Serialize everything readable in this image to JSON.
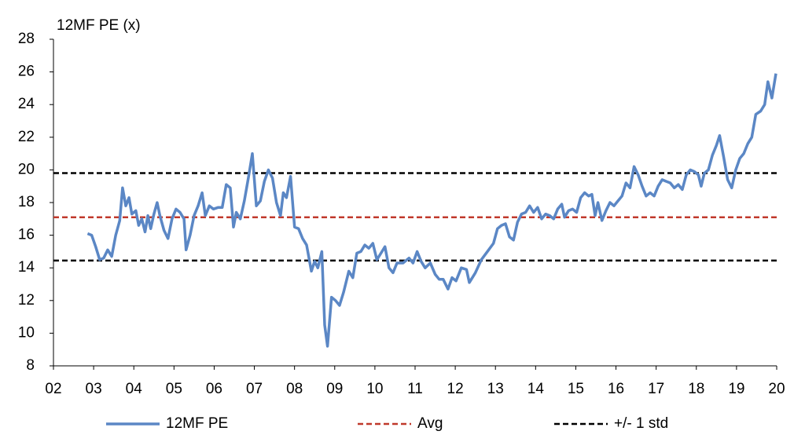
{
  "chart_data": {
    "type": "line",
    "y_label": "12MF PE (x)",
    "xlim": [
      2,
      20
    ],
    "xticks": [
      {
        "value": 2,
        "label": "02"
      },
      {
        "value": 3,
        "label": "03"
      },
      {
        "value": 4,
        "label": "04"
      },
      {
        "value": 5,
        "label": "05"
      },
      {
        "value": 6,
        "label": "06"
      },
      {
        "value": 7,
        "label": "07"
      },
      {
        "value": 8,
        "label": "08"
      },
      {
        "value": 9,
        "label": "09"
      },
      10,
      11,
      12,
      13,
      14,
      15,
      16,
      17,
      18,
      19,
      20
    ],
    "ylim": [
      8,
      28
    ],
    "yticks": [
      8,
      10,
      12,
      14,
      16,
      18,
      20,
      22,
      24,
      26,
      28
    ],
    "grid": false,
    "legend": "bottom",
    "series": [
      {
        "name": "12MF PE",
        "color": "#5b87c5",
        "x": [
          2.85,
          2.95,
          3.05,
          3.15,
          3.25,
          3.35,
          3.45,
          3.55,
          3.65,
          3.72,
          3.8,
          3.88,
          3.95,
          4.05,
          4.12,
          4.2,
          4.28,
          4.35,
          4.42,
          4.5,
          4.58,
          4.65,
          4.75,
          4.85,
          4.95,
          5.05,
          5.15,
          5.25,
          5.3,
          5.4,
          5.5,
          5.6,
          5.7,
          5.78,
          5.88,
          5.98,
          6.1,
          6.2,
          6.3,
          6.4,
          6.48,
          6.55,
          6.65,
          6.75,
          6.85,
          6.95,
          7.05,
          7.15,
          7.25,
          7.35,
          7.45,
          7.55,
          7.65,
          7.72,
          7.8,
          7.9,
          8.0,
          8.1,
          8.2,
          8.3,
          8.42,
          8.5,
          8.58,
          8.68,
          8.75,
          8.82,
          8.92,
          9.02,
          9.12,
          9.22,
          9.35,
          9.45,
          9.55,
          9.65,
          9.75,
          9.85,
          9.95,
          10.05,
          10.15,
          10.25,
          10.35,
          10.45,
          10.55,
          10.7,
          10.85,
          10.95,
          11.05,
          11.15,
          11.25,
          11.38,
          11.5,
          11.6,
          11.7,
          11.82,
          11.92,
          12.02,
          12.15,
          12.28,
          12.35,
          12.5,
          12.65,
          12.8,
          12.95,
          13.05,
          13.15,
          13.25,
          13.35,
          13.45,
          13.55,
          13.65,
          13.75,
          13.85,
          13.95,
          14.05,
          14.15,
          14.25,
          14.35,
          14.45,
          14.55,
          14.65,
          14.72,
          14.82,
          14.92,
          15.02,
          15.12,
          15.22,
          15.32,
          15.4,
          15.48,
          15.55,
          15.65,
          15.75,
          15.85,
          15.95,
          16.05,
          16.15,
          16.25,
          16.35,
          16.45,
          16.55,
          16.65,
          16.75,
          16.85,
          16.95,
          17.05,
          17.15,
          17.25,
          17.35,
          17.45,
          17.55,
          17.65,
          17.75,
          17.85,
          17.95,
          18.05,
          18.12,
          18.2,
          18.3,
          18.4,
          18.5,
          18.58,
          18.68,
          18.78,
          18.88,
          18.98,
          19.08,
          19.18,
          19.28,
          19.38,
          19.48,
          19.6,
          19.7,
          19.78,
          19.88,
          19.98
        ],
        "values": [
          16.1,
          16.0,
          15.3,
          14.5,
          14.6,
          15.1,
          14.7,
          16.0,
          16.9,
          18.9,
          17.8,
          18.3,
          17.3,
          17.5,
          16.6,
          17.0,
          16.2,
          17.2,
          16.4,
          17.3,
          18.0,
          17.2,
          16.3,
          15.8,
          17.0,
          17.6,
          17.4,
          17.0,
          15.1,
          16.0,
          17.2,
          17.8,
          18.6,
          17.2,
          17.8,
          17.6,
          17.7,
          17.7,
          19.1,
          18.9,
          16.5,
          17.4,
          17.0,
          18.1,
          19.5,
          21.0,
          17.8,
          18.1,
          19.3,
          20.0,
          19.5,
          18.0,
          17.2,
          18.6,
          18.3,
          19.6,
          16.5,
          16.4,
          15.8,
          15.4,
          13.8,
          14.4,
          14.0,
          15.0,
          10.5,
          9.2,
          12.2,
          12.0,
          11.7,
          12.5,
          13.8,
          13.4,
          14.9,
          15.0,
          15.4,
          15.2,
          15.5,
          14.5,
          14.9,
          15.3,
          14.0,
          13.7,
          14.3,
          14.3,
          14.6,
          14.3,
          15.0,
          14.4,
          14.0,
          14.3,
          13.6,
          13.3,
          13.3,
          12.7,
          13.4,
          13.2,
          14.0,
          13.9,
          13.1,
          13.7,
          14.5,
          15.0,
          15.5,
          16.4,
          16.6,
          16.7,
          15.9,
          15.7,
          16.8,
          17.3,
          17.4,
          17.8,
          17.4,
          17.7,
          17.0,
          17.3,
          17.2,
          17.0,
          17.6,
          17.9,
          17.1,
          17.5,
          17.6,
          17.4,
          18.3,
          18.6,
          18.4,
          18.5,
          17.2,
          18.0,
          16.9,
          17.5,
          18.0,
          17.8,
          18.1,
          18.4,
          19.2,
          18.9,
          20.2,
          19.7,
          19.0,
          18.4,
          18.6,
          18.4,
          19.0,
          19.4,
          19.3,
          19.2,
          18.9,
          19.1,
          18.8,
          19.7,
          20.0,
          19.9,
          19.7,
          19.0,
          19.8,
          20.0,
          20.9,
          21.5,
          22.1,
          20.8,
          19.4,
          18.9,
          20.0,
          20.7,
          21.0,
          21.6,
          22.0,
          23.4,
          23.6,
          24.0,
          25.4,
          24.4,
          25.9
        ]
      }
    ],
    "reference_lines": [
      {
        "name": "Avg",
        "color": "#c0392b",
        "values": [
          17.1
        ]
      },
      {
        "name": "+/- 1 std",
        "color": "#000000",
        "values": [
          19.8,
          14.45
        ]
      }
    ]
  }
}
